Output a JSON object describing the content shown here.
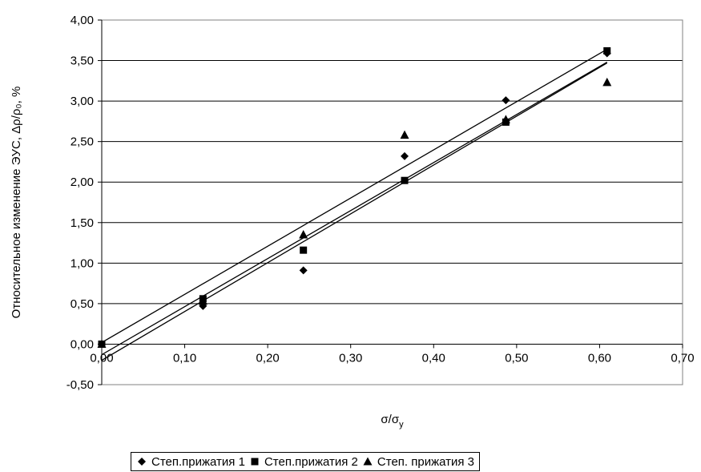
{
  "chart_data": {
    "type": "scatter",
    "title": "",
    "xlabel_main": "σ/σ",
    "xlabel_sub": "y",
    "ylabel": "Относительное изменение ЭУС, Δρ/ρ₀, %",
    "xlim": [
      0,
      0.7
    ],
    "ylim": [
      -0.5,
      4.0
    ],
    "x_ticks": [
      "0,00",
      "0,10",
      "0,20",
      "0,30",
      "0,40",
      "0,50",
      "0,60",
      "0,70"
    ],
    "x_tick_values": [
      0,
      0.1,
      0.2,
      0.3,
      0.4,
      0.5,
      0.6,
      0.7
    ],
    "y_ticks": [
      "-0,50",
      "0,00",
      "0,50",
      "1,00",
      "1,50",
      "2,00",
      "2,50",
      "3,00",
      "3,50",
      "4,00"
    ],
    "y_tick_values": [
      -0.5,
      0,
      0.5,
      1.0,
      1.5,
      2.0,
      2.5,
      3.0,
      3.5,
      4.0
    ],
    "grid": "horizontal",
    "legend_position": "bottom",
    "series": [
      {
        "name": "Степ.прижатия 1",
        "marker": "diamond",
        "x": [
          0,
          0.122,
          0.243,
          0.365,
          0.487,
          0.609
        ],
        "y": [
          0.0,
          0.47,
          0.91,
          2.32,
          3.01,
          3.59
        ],
        "trendline": [
          [
            0,
            -0.13
          ],
          [
            0.609,
            3.48
          ]
        ]
      },
      {
        "name": "Степ.прижатия 2",
        "marker": "square",
        "x": [
          0,
          0.122,
          0.243,
          0.365,
          0.487,
          0.609
        ],
        "y": [
          0.0,
          0.56,
          1.16,
          2.02,
          2.74,
          3.62
        ],
        "trendline": [
          [
            0,
            0.02
          ],
          [
            0.609,
            3.64
          ]
        ]
      },
      {
        "name": "Степ. прижатия 3",
        "marker": "triangle",
        "x": [
          0,
          0.122,
          0.243,
          0.365,
          0.487,
          0.609
        ],
        "y": [
          0.0,
          0.53,
          1.35,
          2.58,
          2.77,
          3.23
        ],
        "trendline": [
          [
            0,
            -0.2
          ],
          [
            0.609,
            3.47
          ]
        ]
      }
    ]
  }
}
